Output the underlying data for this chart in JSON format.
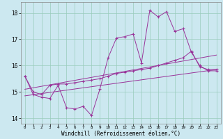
{
  "xlabel": "Windchill (Refroidissement éolien,°C)",
  "bg_color": "#cce8f0",
  "line_color": "#993399",
  "grid_color": "#99ccbb",
  "xlim": [
    -0.5,
    23.5
  ],
  "ylim": [
    13.8,
    18.4
  ],
  "xticks": [
    0,
    1,
    2,
    3,
    4,
    5,
    6,
    7,
    8,
    9,
    10,
    11,
    12,
    13,
    14,
    15,
    16,
    17,
    18,
    19,
    20,
    21,
    22,
    23
  ],
  "yticks": [
    14,
    15,
    16,
    17,
    18
  ],
  "line1_x": [
    0,
    1,
    2,
    3,
    4,
    5,
    6,
    7,
    8,
    9,
    10,
    11,
    12,
    13,
    14,
    15,
    16,
    17,
    18,
    19,
    20,
    21,
    22,
    23
  ],
  "line1_y": [
    15.6,
    14.9,
    14.8,
    14.75,
    15.25,
    14.4,
    14.35,
    14.45,
    14.1,
    15.1,
    16.3,
    17.05,
    17.1,
    17.2,
    16.1,
    18.1,
    17.85,
    18.05,
    17.3,
    17.4,
    16.5,
    16.0,
    15.8,
    15.8
  ],
  "line2_x": [
    0,
    1,
    2,
    3,
    4,
    5,
    6,
    7,
    8,
    9,
    10,
    11,
    12,
    13,
    14,
    15,
    16,
    17,
    18,
    19,
    20,
    21,
    22,
    23
  ],
  "line2_y": [
    15.6,
    15.0,
    14.9,
    15.25,
    15.3,
    15.3,
    15.35,
    15.4,
    15.45,
    15.5,
    15.6,
    15.7,
    15.75,
    15.8,
    15.85,
    15.9,
    16.0,
    16.1,
    16.2,
    16.3,
    16.55,
    15.95,
    15.85,
    15.85
  ],
  "line3_x": [
    0,
    23
  ],
  "line3_y": [
    14.85,
    15.85
  ],
  "line4_x": [
    0,
    23
  ],
  "line4_y": [
    15.1,
    16.4
  ]
}
